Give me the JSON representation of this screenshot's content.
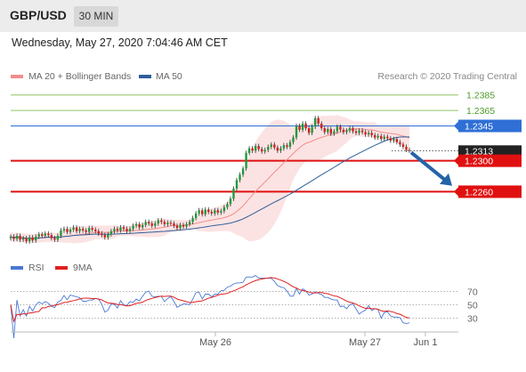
{
  "header": {
    "pair": "GBP/USD",
    "timeframe": "30 MIN"
  },
  "timestamp": "Wednesday, May 27, 2020 7:04:46 AM CET",
  "legend": {
    "ma20": {
      "label": "MA 20 + Bollinger Bands",
      "color": "#f28c8c"
    },
    "ma50": {
      "label": "MA 50",
      "color": "#2f5d9a"
    },
    "rsi": {
      "label": "RSI",
      "color": "#4a78d4"
    },
    "ma9": {
      "label": "9MA",
      "color": "#e02020"
    }
  },
  "copyright": "Research © 2020 Trading Central",
  "chart_data": {
    "type": "candlestick",
    "price_range": [
      1.218,
      1.2395
    ],
    "x_ticks": [
      "May 26",
      "May 27",
      "Jun 1"
    ],
    "levels": [
      {
        "value": 1.2385,
        "label": "1.2385",
        "kind": "resistance",
        "color": "#8fc46a"
      },
      {
        "value": 1.2365,
        "label": "1.2365",
        "kind": "resistance",
        "color": "#8fc46a"
      },
      {
        "value": 1.2345,
        "label": "1.2345",
        "kind": "pivot",
        "color": "#2f6fd6"
      },
      {
        "value": 1.2313,
        "label": "1.2313",
        "kind": "last",
        "color": "#222222"
      },
      {
        "value": 1.23,
        "label": "1.2300",
        "kind": "support",
        "color": "#e01010"
      },
      {
        "value": 1.226,
        "label": "1.2260",
        "kind": "support",
        "color": "#e01010"
      }
    ],
    "closes": [
      1.2202,
      1.2199,
      1.2203,
      1.2198,
      1.22,
      1.2196,
      1.2201,
      1.2197,
      1.2202,
      1.2205,
      1.2203,
      1.2206,
      1.2204,
      1.22,
      1.2198,
      1.2203,
      1.221,
      1.2212,
      1.2208,
      1.2211,
      1.2214,
      1.2209,
      1.2212,
      1.221,
      1.2208,
      1.2213,
      1.2211,
      1.2209,
      1.2206,
      1.2204,
      1.2201,
      1.2205,
      1.2209,
      1.2212,
      1.221,
      1.2214,
      1.2212,
      1.2209,
      1.2212,
      1.2216,
      1.2218,
      1.2214,
      1.2217,
      1.2221,
      1.2219,
      1.2216,
      1.2219,
      1.2223,
      1.2221,
      1.2218,
      1.222,
      1.2219,
      1.2216,
      1.2213,
      1.2217,
      1.2215,
      1.2218,
      1.2221,
      1.2226,
      1.2232,
      1.2236,
      1.2231,
      1.2237,
      1.2234,
      1.2232,
      1.2236,
      1.2233,
      1.2235,
      1.224,
      1.2244,
      1.2251,
      1.2264,
      1.2275,
      1.2282,
      1.229,
      1.231,
      1.2316,
      1.2313,
      1.2319,
      1.2315,
      1.2312,
      1.2314,
      1.2318,
      1.2321,
      1.2317,
      1.2313,
      1.2316,
      1.232,
      1.2318,
      1.2324,
      1.233,
      1.2345,
      1.234,
      1.2348,
      1.2342,
      1.2336,
      1.2344,
      1.2355,
      1.2348,
      1.2342,
      1.2337,
      1.2341,
      1.2335,
      1.2338,
      1.2344,
      1.234,
      1.2337,
      1.2339,
      1.2342,
      1.2338,
      1.2336,
      1.2339,
      1.2337,
      1.2334,
      1.2336,
      1.2333,
      1.233,
      1.2332,
      1.2328,
      1.2331,
      1.2329,
      1.2326,
      1.2328,
      1.2324,
      1.2321,
      1.2318,
      1.2314,
      1.2313
    ],
    "rsi": {
      "ticks": [
        30,
        50,
        70
      ],
      "range": [
        20,
        80
      ]
    }
  }
}
